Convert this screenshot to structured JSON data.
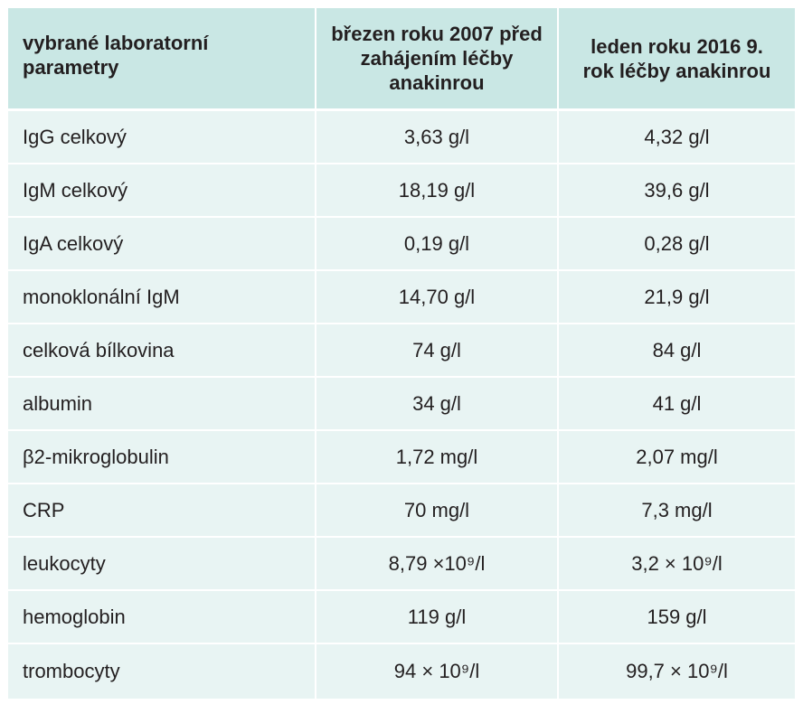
{
  "table": {
    "headers": [
      "vybrané laboratorní parametry",
      "březen roku 2007 před zahájením léčby anakinrou",
      "leden roku 2016 9. rok léčby anakinrou"
    ],
    "rows": [
      {
        "label": "IgG celkový",
        "before": "3,63 g/l",
        "after": "4,32 g/l"
      },
      {
        "label": "IgM celkový",
        "before": "18,19 g/l",
        "after": "39,6 g/l"
      },
      {
        "label": "IgA celkový",
        "before": "0,19 g/l",
        "after": "0,28 g/l"
      },
      {
        "label": "monoklonální IgM",
        "before": "14,70 g/l",
        "after": "21,9 g/l"
      },
      {
        "label": "celková bílkovina",
        "before": "74 g/l",
        "after": "84 g/l"
      },
      {
        "label": "albumin",
        "before": "34 g/l",
        "after": "41 g/l"
      },
      {
        "label": "β2-mikroglobulin",
        "before": "1,72 mg/l",
        "after": "2,07 mg/l"
      },
      {
        "label": "CRP",
        "before": "70 mg/l",
        "after": "7,3 mg/l"
      },
      {
        "label": "leukocyty",
        "before": "8,79 ×10⁹/l",
        "after": "3,2 × 10⁹/l"
      },
      {
        "label": "hemoglobin",
        "before": "119 g/l",
        "after": "159 g/l"
      },
      {
        "label": "trombocyty",
        "before": "94 × 10⁹/l",
        "after": "99,7 × 10⁹/l"
      }
    ]
  },
  "colors": {
    "header_bg": "#c9e7e4",
    "row_bg": "#e8f4f3",
    "text": "#231f20",
    "separator": "#ffffff"
  }
}
